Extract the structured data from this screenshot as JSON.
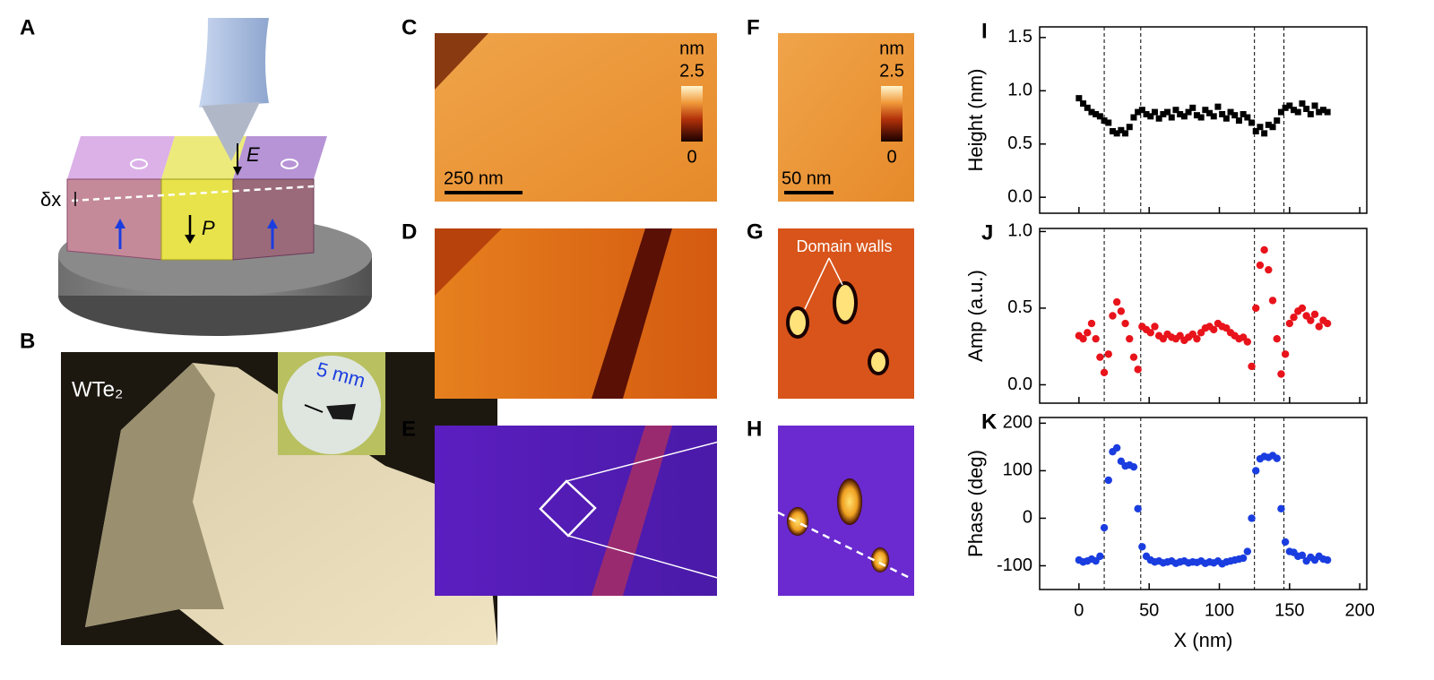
{
  "panels": {
    "a": {
      "label": "A",
      "field": "E",
      "polarization": "P",
      "offset": "δx"
    },
    "b": {
      "label": "B",
      "material": "WTe₂",
      "scale": "5 mm"
    },
    "c": {
      "label": "C",
      "scale": "250 nm",
      "unit": "nm",
      "max": "2.5",
      "min": "0"
    },
    "d": {
      "label": "D"
    },
    "e": {
      "label": "E"
    },
    "f": {
      "label": "F",
      "scale": "50 nm",
      "unit": "nm",
      "max": "2.5",
      "min": "0"
    },
    "g": {
      "label": "G",
      "annotation": "Domain walls"
    },
    "h": {
      "label": "H"
    }
  },
  "chart_data": [
    {
      "type": "scatter",
      "panel": "I",
      "ylabel": "Height (nm)",
      "color": "#000000",
      "marker": "square",
      "xlim": [
        -28,
        205
      ],
      "xticks": [
        0,
        50,
        100,
        150,
        200
      ],
      "ylim": [
        -0.15,
        1.6
      ],
      "yticks": [
        {
          "value": 0,
          "label": "0.0"
        },
        {
          "value": 0.5,
          "label": "0.5"
        },
        {
          "value": 1,
          "label": "1.0"
        },
        {
          "value": 1.5,
          "label": "1.5"
        }
      ],
      "vlines": [
        18,
        44,
        125,
        146
      ],
      "x": [
        0,
        3,
        6,
        9,
        12,
        15,
        18,
        21,
        24,
        27,
        30,
        33,
        36,
        39,
        42,
        45,
        48,
        51,
        54,
        57,
        60,
        63,
        66,
        69,
        72,
        75,
        78,
        81,
        84,
        87,
        90,
        93,
        96,
        99,
        102,
        105,
        108,
        111,
        114,
        117,
        120,
        123,
        126,
        129,
        132,
        135,
        138,
        141,
        144,
        147,
        150,
        153,
        156,
        159,
        162,
        165,
        168,
        171,
        174,
        177
      ],
      "values": [
        0.93,
        0.88,
        0.84,
        0.8,
        0.78,
        0.76,
        0.72,
        0.7,
        0.62,
        0.6,
        0.63,
        0.6,
        0.66,
        0.75,
        0.8,
        0.82,
        0.78,
        0.76,
        0.8,
        0.74,
        0.78,
        0.8,
        0.75,
        0.82,
        0.78,
        0.76,
        0.8,
        0.84,
        0.77,
        0.75,
        0.82,
        0.79,
        0.76,
        0.85,
        0.78,
        0.74,
        0.8,
        0.77,
        0.72,
        0.78,
        0.75,
        0.7,
        0.62,
        0.66,
        0.6,
        0.68,
        0.66,
        0.72,
        0.8,
        0.84,
        0.86,
        0.82,
        0.8,
        0.88,
        0.83,
        0.78,
        0.86,
        0.8,
        0.82,
        0.8
      ]
    },
    {
      "type": "scatter",
      "panel": "J",
      "ylabel": "Amp (a.u.)",
      "color": "#e8131b",
      "marker": "circle",
      "xlim": [
        -28,
        205
      ],
      "xticks": [
        0,
        50,
        100,
        150,
        200
      ],
      "ylim": [
        -0.12,
        1.02
      ],
      "yticks": [
        {
          "value": 0,
          "label": "0.0"
        },
        {
          "value": 0.5,
          "label": "0.5"
        },
        {
          "value": 1,
          "label": "1.0"
        }
      ],
      "vlines": [
        18,
        44,
        125,
        146
      ],
      "x": [
        0,
        3,
        6,
        9,
        12,
        15,
        18,
        21,
        24,
        27,
        30,
        33,
        36,
        39,
        42,
        45,
        48,
        51,
        54,
        57,
        60,
        63,
        66,
        69,
        72,
        75,
        78,
        81,
        84,
        87,
        90,
        93,
        96,
        99,
        102,
        105,
        108,
        111,
        114,
        117,
        120,
        123,
        126,
        129,
        132,
        135,
        138,
        141,
        144,
        147,
        150,
        153,
        156,
        159,
        162,
        165,
        168,
        171,
        174,
        177
      ],
      "values": [
        0.32,
        0.3,
        0.34,
        0.4,
        0.3,
        0.18,
        0.08,
        0.2,
        0.45,
        0.54,
        0.48,
        0.4,
        0.3,
        0.18,
        0.1,
        0.38,
        0.36,
        0.34,
        0.38,
        0.32,
        0.3,
        0.33,
        0.31,
        0.3,
        0.32,
        0.29,
        0.31,
        0.33,
        0.3,
        0.34,
        0.37,
        0.38,
        0.36,
        0.4,
        0.38,
        0.37,
        0.34,
        0.32,
        0.3,
        0.31,
        0.28,
        0.12,
        0.5,
        0.78,
        0.88,
        0.75,
        0.55,
        0.3,
        0.07,
        0.2,
        0.4,
        0.44,
        0.48,
        0.5,
        0.45,
        0.42,
        0.46,
        0.38,
        0.42,
        0.4
      ]
    },
    {
      "type": "scatter",
      "panel": "K",
      "ylabel": "Phase (deg)",
      "xlabel": "X (nm)",
      "color": "#1a3de0",
      "marker": "circle",
      "xlim": [
        -28,
        205
      ],
      "xticks": [
        0,
        50,
        100,
        150,
        200
      ],
      "ylim": [
        -150,
        212
      ],
      "yticks": [
        -100,
        0,
        100,
        200
      ],
      "vlines": [
        18,
        44,
        125,
        146
      ],
      "x": [
        0,
        3,
        6,
        9,
        12,
        15,
        18,
        21,
        24,
        27,
        30,
        33,
        36,
        39,
        42,
        45,
        48,
        51,
        54,
        57,
        60,
        63,
        66,
        69,
        72,
        75,
        78,
        81,
        84,
        87,
        90,
        93,
        96,
        99,
        102,
        105,
        108,
        111,
        114,
        117,
        120,
        123,
        126,
        129,
        132,
        135,
        138,
        141,
        144,
        147,
        150,
        153,
        156,
        159,
        162,
        165,
        168,
        171,
        174,
        177
      ],
      "values": [
        -88,
        -92,
        -90,
        -86,
        -90,
        -80,
        -20,
        80,
        140,
        148,
        120,
        110,
        112,
        108,
        20,
        -60,
        -80,
        -88,
        -92,
        -90,
        -94,
        -92,
        -90,
        -95,
        -92,
        -90,
        -94,
        -92,
        -93,
        -90,
        -95,
        -92,
        -94,
        -90,
        -96,
        -92,
        -90,
        -88,
        -86,
        -84,
        -70,
        0,
        100,
        125,
        130,
        128,
        132,
        126,
        20,
        -50,
        -70,
        -72,
        -80,
        -78,
        -90,
        -82,
        -88,
        -80,
        -86,
        -88
      ]
    }
  ]
}
